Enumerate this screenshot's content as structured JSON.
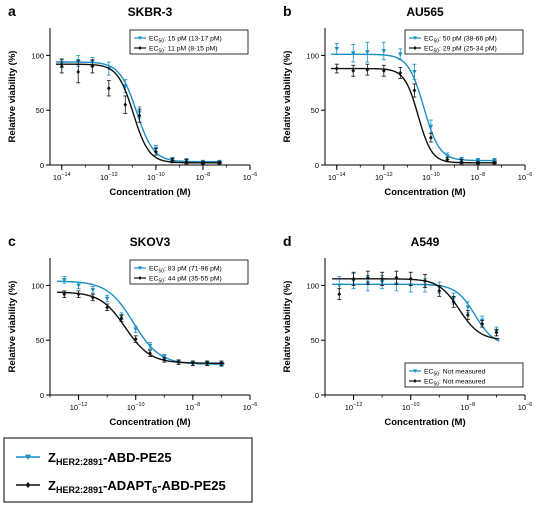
{
  "series_styles": [
    {
      "color": "#1a8fc4",
      "marker": "triangle-down"
    },
    {
      "color": "#111111",
      "marker": "diamond"
    }
  ],
  "main_legend": [
    {
      "base": "Z",
      "sub": "HER2:2891",
      "rest": "-ABD-PE25",
      "sub2": "",
      "rest2": ""
    },
    {
      "base": "Z",
      "sub": "HER2:2891",
      "rest": "-ADAPT",
      "sub2": "6",
      "rest2": "-ABD-PE25"
    }
  ],
  "chart_data": [
    {
      "type": "line",
      "letter": "a",
      "title": "SKBR-3",
      "xlabel": "Concentration (M)",
      "ylabel": "Relative viability (%)",
      "xscale": "log",
      "xlim": [
        -14.5,
        -6
      ],
      "ylim": [
        0,
        125
      ],
      "xticks": [
        -14,
        -12,
        -10,
        -8,
        -6
      ],
      "yticks": [
        0,
        50,
        100
      ],
      "legend_position": "top-right",
      "legend": [
        "EC50: 15 pM (13-17 pM)",
        "EC50: 11 pM (8-15 pM)"
      ],
      "series": [
        {
          "top": 94,
          "bottom": 3,
          "log_ec50": -10.82,
          "hill": 1.2,
          "x": [
            -14,
            -13.3,
            -12.7,
            -12,
            -11.3,
            -10.7,
            -10,
            -9.3,
            -8.7,
            -8,
            -7.3
          ],
          "y": [
            93,
            95,
            94,
            88,
            72,
            48,
            15,
            5,
            4,
            3,
            3
          ],
          "err": [
            4,
            5,
            4,
            6,
            6,
            5,
            3,
            2,
            2,
            1,
            1
          ]
        },
        {
          "top": 92,
          "bottom": 2,
          "log_ec50": -10.96,
          "hill": 1.3,
          "x": [
            -14,
            -13.3,
            -12.7,
            -12,
            -11.3,
            -10.7,
            -10,
            -9.3,
            -8.7,
            -8,
            -7.3
          ],
          "y": [
            90,
            85,
            90,
            70,
            55,
            45,
            12,
            4,
            3,
            2,
            2
          ],
          "err": [
            6,
            10,
            6,
            7,
            8,
            6,
            3,
            2,
            2,
            1,
            1
          ]
        }
      ]
    },
    {
      "type": "line",
      "letter": "b",
      "title": "AU565",
      "xlabel": "Concentration (M)",
      "ylabel": "Relative viability (%)",
      "xscale": "log",
      "xlim": [
        -14.5,
        -6
      ],
      "ylim": [
        0,
        125
      ],
      "xticks": [
        -14,
        -12,
        -10,
        -8,
        -6
      ],
      "yticks": [
        0,
        50,
        100
      ],
      "legend_position": "top-right",
      "legend": [
        "EC50: 50 pM (38-66 pM)",
        "EC50: 29 pM (25-34 pM)"
      ],
      "series": [
        {
          "top": 101,
          "bottom": 4,
          "log_ec50": -10.3,
          "hill": 1.3,
          "x": [
            -14,
            -13.3,
            -12.7,
            -12,
            -11.3,
            -10.7,
            -10,
            -9.3,
            -8.7,
            -8,
            -7.3
          ],
          "y": [
            106,
            102,
            103,
            104,
            101,
            85,
            35,
            8,
            5,
            4,
            4
          ],
          "err": [
            5,
            8,
            9,
            8,
            5,
            7,
            6,
            3,
            2,
            2,
            2
          ]
        },
        {
          "top": 88,
          "bottom": 2,
          "log_ec50": -10.54,
          "hill": 1.5,
          "x": [
            -14,
            -13.3,
            -12.7,
            -12,
            -11.3,
            -10.7,
            -10,
            -9.3,
            -8.7,
            -8,
            -7.3
          ],
          "y": [
            88,
            86,
            87,
            86,
            84,
            68,
            25,
            5,
            3,
            2,
            2
          ],
          "err": [
            4,
            5,
            5,
            5,
            5,
            6,
            4,
            2,
            2,
            1,
            1
          ]
        }
      ]
    },
    {
      "type": "line",
      "letter": "c",
      "title": "SKOV3",
      "xlabel": "Concentration (M)",
      "ylabel": "Relative viability (%)",
      "xscale": "log",
      "xlim": [
        -13,
        -6
      ],
      "ylim": [
        0,
        125
      ],
      "xticks": [
        -12,
        -10,
        -8,
        -6
      ],
      "yticks": [
        0,
        50,
        100
      ],
      "legend_position": "top-right",
      "legend": [
        "EC50: 83 pM (71-96 pM)",
        "EC50: 44 pM (35-55 pM)"
      ],
      "series": [
        {
          "top": 104,
          "bottom": 28,
          "log_ec50": -10.08,
          "hill": 0.95,
          "x": [
            -12.5,
            -12,
            -11.5,
            -11,
            -10.5,
            -10,
            -9.5,
            -9,
            -8.5,
            -8,
            -7.5,
            -7
          ],
          "y": [
            105,
            100,
            96,
            88,
            72,
            60,
            45,
            35,
            30,
            29,
            29,
            28
          ],
          "err": [
            3,
            3,
            3,
            3,
            3,
            3,
            3,
            2,
            2,
            2,
            2,
            2
          ]
        },
        {
          "top": 94,
          "bottom": 29,
          "log_ec50": -10.36,
          "hill": 1.0,
          "x": [
            -12.5,
            -12,
            -11.5,
            -11,
            -10.5,
            -10,
            -9.5,
            -9,
            -8.5,
            -8,
            -7.5,
            -7
          ],
          "y": [
            92,
            92,
            89,
            80,
            70,
            51,
            38,
            32,
            30,
            29,
            29,
            29
          ],
          "err": [
            3,
            3,
            3,
            3,
            3,
            3,
            3,
            2,
            2,
            2,
            2,
            2
          ]
        }
      ]
    },
    {
      "type": "line",
      "letter": "d",
      "title": "A549",
      "xlabel": "Concentration (M)",
      "ylabel": "Relative viability (%)",
      "xscale": "log",
      "xlim": [
        -13,
        -6
      ],
      "ylim": [
        0,
        125
      ],
      "xticks": [
        -12,
        -10,
        -8,
        -6
      ],
      "yticks": [
        0,
        50,
        100
      ],
      "legend_position": "bottom-right",
      "legend": [
        "EC50: Not measured",
        "EC50: Not measured"
      ],
      "series": [
        {
          "top": 101,
          "bottom": 45,
          "log_ec50": -7.75,
          "hill": 1.3,
          "x": [
            -12.5,
            -12,
            -11.5,
            -11,
            -10.5,
            -10,
            -9.5,
            -9,
            -8.5,
            -8,
            -7.5,
            -7
          ],
          "y": [
            100,
            104,
            102,
            103,
            101,
            100,
            100,
            98,
            88,
            80,
            68,
            58
          ],
          "err": [
            8,
            7,
            7,
            6,
            6,
            6,
            6,
            5,
            5,
            5,
            4,
            4
          ]
        },
        {
          "top": 106,
          "bottom": 50,
          "log_ec50": -8.3,
          "hill": 1.2,
          "x": [
            -12.5,
            -12,
            -11.5,
            -11,
            -10.5,
            -10,
            -9.5,
            -9,
            -8.5,
            -8,
            -7.5,
            -7
          ],
          "y": [
            92,
            106,
            107,
            106,
            107,
            106,
            104,
            95,
            85,
            73,
            65,
            57
          ],
          "err": [
            5,
            6,
            6,
            6,
            6,
            6,
            6,
            5,
            5,
            4,
            3,
            3
          ]
        }
      ]
    }
  ]
}
